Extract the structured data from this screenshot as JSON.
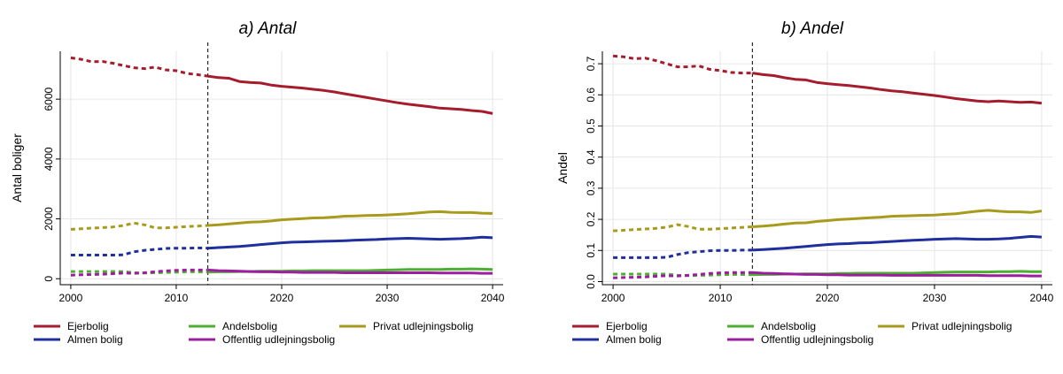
{
  "chart_data": [
    {
      "type": "line",
      "title": "a) Antal",
      "xlabel": "",
      "ylabel": "Antal boliger",
      "xlim": [
        1999,
        2041
      ],
      "ylim": [
        -200,
        7600
      ],
      "xticks": [
        2000,
        2010,
        2020,
        2030,
        2040
      ],
      "yticks": [
        0,
        2000,
        4000,
        6000
      ],
      "ytick_labels": [
        "0",
        "2000",
        "4000",
        "6000"
      ],
      "ytick_orientation": "vertical",
      "grid": true,
      "split_year": 2013,
      "legend": "bottom",
      "series": [
        {
          "name": "Ejerbolig",
          "color": "#a51c2d",
          "x": [
            2000,
            2001,
            2002,
            2003,
            2004,
            2005,
            2006,
            2007,
            2008,
            2009,
            2010,
            2011,
            2012,
            2013,
            2014,
            2015,
            2016,
            2017,
            2018,
            2019,
            2020,
            2021,
            2022,
            2023,
            2024,
            2025,
            2026,
            2027,
            2028,
            2029,
            2030,
            2031,
            2032,
            2033,
            2034,
            2035,
            2036,
            2037,
            2038,
            2039,
            2040
          ],
          "y": [
            7380,
            7330,
            7250,
            7260,
            7200,
            7120,
            7050,
            7020,
            7070,
            6980,
            6950,
            6860,
            6820,
            6770,
            6720,
            6700,
            6590,
            6560,
            6540,
            6470,
            6430,
            6400,
            6370,
            6330,
            6290,
            6240,
            6180,
            6120,
            6060,
            6000,
            5940,
            5880,
            5830,
            5790,
            5750,
            5700,
            5680,
            5660,
            5620,
            5590,
            5520
          ]
        },
        {
          "name": "Almen bolig",
          "color": "#1f2f9e",
          "x": [
            2000,
            2001,
            2002,
            2003,
            2004,
            2005,
            2006,
            2007,
            2008,
            2009,
            2010,
            2011,
            2012,
            2013,
            2014,
            2015,
            2016,
            2017,
            2018,
            2019,
            2020,
            2021,
            2022,
            2023,
            2024,
            2025,
            2026,
            2027,
            2028,
            2029,
            2030,
            2031,
            2032,
            2033,
            2034,
            2035,
            2036,
            2037,
            2038,
            2039,
            2040
          ],
          "y": [
            790,
            790,
            790,
            790,
            790,
            800,
            900,
            950,
            980,
            1010,
            1020,
            1020,
            1030,
            1020,
            1040,
            1060,
            1080,
            1110,
            1140,
            1170,
            1200,
            1220,
            1230,
            1240,
            1250,
            1260,
            1270,
            1290,
            1300,
            1310,
            1330,
            1340,
            1350,
            1340,
            1330,
            1320,
            1330,
            1340,
            1360,
            1390,
            1370
          ]
        },
        {
          "name": "Andelsbolig",
          "color": "#4caf32",
          "x": [
            2000,
            2001,
            2002,
            2003,
            2004,
            2005,
            2006,
            2007,
            2008,
            2009,
            2010,
            2011,
            2012,
            2013,
            2014,
            2015,
            2016,
            2017,
            2018,
            2019,
            2020,
            2021,
            2022,
            2023,
            2024,
            2025,
            2026,
            2027,
            2028,
            2029,
            2030,
            2031,
            2032,
            2033,
            2034,
            2035,
            2036,
            2037,
            2038,
            2039,
            2040
          ],
          "y": [
            240,
            240,
            240,
            240,
            240,
            240,
            200,
            190,
            200,
            210,
            220,
            230,
            230,
            220,
            230,
            230,
            240,
            240,
            250,
            250,
            250,
            260,
            260,
            270,
            270,
            270,
            270,
            270,
            270,
            280,
            290,
            300,
            310,
            310,
            310,
            310,
            320,
            320,
            330,
            320,
            310
          ]
        },
        {
          "name": "Offentlig udlejningsbolig",
          "color": "#9c1e9e",
          "x": [
            2000,
            2001,
            2002,
            2003,
            2004,
            2005,
            2006,
            2007,
            2008,
            2009,
            2010,
            2011,
            2012,
            2013,
            2014,
            2015,
            2016,
            2017,
            2018,
            2019,
            2020,
            2021,
            2022,
            2023,
            2024,
            2025,
            2026,
            2027,
            2028,
            2029,
            2030,
            2031,
            2032,
            2033,
            2034,
            2035,
            2036,
            2037,
            2038,
            2039,
            2040
          ],
          "y": [
            120,
            130,
            140,
            150,
            170,
            190,
            180,
            200,
            230,
            260,
            280,
            290,
            290,
            290,
            270,
            260,
            250,
            240,
            230,
            230,
            220,
            220,
            210,
            210,
            210,
            210,
            200,
            200,
            200,
            200,
            200,
            200,
            200,
            200,
            200,
            190,
            190,
            190,
            190,
            180,
            180
          ]
        },
        {
          "name": "Privat udlejningsbolig",
          "color": "#a89a1c",
          "x": [
            2000,
            2001,
            2002,
            2003,
            2004,
            2005,
            2006,
            2007,
            2008,
            2009,
            2010,
            2011,
            2012,
            2013,
            2014,
            2015,
            2016,
            2017,
            2018,
            2019,
            2020,
            2021,
            2022,
            2023,
            2024,
            2025,
            2026,
            2027,
            2028,
            2029,
            2030,
            2031,
            2032,
            2033,
            2034,
            2035,
            2036,
            2037,
            2038,
            2039,
            2040
          ],
          "y": [
            1650,
            1670,
            1690,
            1710,
            1730,
            1780,
            1860,
            1800,
            1700,
            1700,
            1720,
            1740,
            1760,
            1780,
            1800,
            1830,
            1860,
            1890,
            1900,
            1930,
            1970,
            1990,
            2010,
            2030,
            2040,
            2060,
            2090,
            2100,
            2110,
            2120,
            2130,
            2150,
            2170,
            2200,
            2230,
            2240,
            2220,
            2210,
            2210,
            2190,
            2180
          ]
        }
      ]
    },
    {
      "type": "line",
      "title": "b) Andel",
      "xlabel": "",
      "ylabel": "Andel",
      "xlim": [
        1999,
        2041
      ],
      "ylim": [
        -0.01,
        0.74
      ],
      "xticks": [
        2000,
        2010,
        2020,
        2030,
        2040
      ],
      "yticks": [
        0,
        0.1,
        0.2,
        0.3,
        0.4,
        0.5,
        0.6,
        0.7
      ],
      "ytick_labels": [
        "0.0",
        "0.1",
        "0.2",
        "0.3",
        "0.4",
        "0.5",
        "0.6",
        "0.7"
      ],
      "ytick_orientation": "vertical",
      "grid": true,
      "split_year": 2013,
      "legend": "bottom",
      "series": [
        {
          "name": "Ejerbolig",
          "color": "#a51c2d",
          "x": [
            2000,
            2001,
            2002,
            2003,
            2004,
            2005,
            2006,
            2007,
            2008,
            2009,
            2010,
            2011,
            2012,
            2013,
            2014,
            2015,
            2016,
            2017,
            2018,
            2019,
            2020,
            2021,
            2022,
            2023,
            2024,
            2025,
            2026,
            2027,
            2028,
            2029,
            2030,
            2031,
            2032,
            2033,
            2034,
            2035,
            2036,
            2037,
            2038,
            2039,
            2040
          ],
          "y": [
            0.725,
            0.722,
            0.716,
            0.718,
            0.71,
            0.7,
            0.69,
            0.69,
            0.693,
            0.682,
            0.678,
            0.672,
            0.67,
            0.67,
            0.665,
            0.662,
            0.655,
            0.65,
            0.648,
            0.64,
            0.636,
            0.633,
            0.63,
            0.626,
            0.622,
            0.617,
            0.613,
            0.61,
            0.606,
            0.602,
            0.598,
            0.593,
            0.588,
            0.584,
            0.58,
            0.578,
            0.58,
            0.578,
            0.576,
            0.577,
            0.573
          ]
        },
        {
          "name": "Almen bolig",
          "color": "#1f2f9e",
          "x": [
            2000,
            2001,
            2002,
            2003,
            2004,
            2005,
            2006,
            2007,
            2008,
            2009,
            2010,
            2011,
            2012,
            2013,
            2014,
            2015,
            2016,
            2017,
            2018,
            2019,
            2020,
            2021,
            2022,
            2023,
            2024,
            2025,
            2026,
            2027,
            2028,
            2029,
            2030,
            2031,
            2032,
            2033,
            2034,
            2035,
            2036,
            2037,
            2038,
            2039,
            2040
          ],
          "y": [
            0.077,
            0.077,
            0.077,
            0.077,
            0.077,
            0.078,
            0.087,
            0.093,
            0.096,
            0.099,
            0.1,
            0.1,
            0.101,
            0.101,
            0.103,
            0.105,
            0.107,
            0.11,
            0.113,
            0.116,
            0.119,
            0.121,
            0.122,
            0.124,
            0.125,
            0.127,
            0.129,
            0.131,
            0.133,
            0.134,
            0.136,
            0.137,
            0.138,
            0.137,
            0.136,
            0.136,
            0.137,
            0.139,
            0.142,
            0.145,
            0.143
          ]
        },
        {
          "name": "Andelsbolig",
          "color": "#4caf32",
          "x": [
            2000,
            2001,
            2002,
            2003,
            2004,
            2005,
            2006,
            2007,
            2008,
            2009,
            2010,
            2011,
            2012,
            2013,
            2014,
            2015,
            2016,
            2017,
            2018,
            2019,
            2020,
            2021,
            2022,
            2023,
            2024,
            2025,
            2026,
            2027,
            2028,
            2029,
            2030,
            2031,
            2032,
            2033,
            2034,
            2035,
            2036,
            2037,
            2038,
            2039,
            2040
          ],
          "y": [
            0.024,
            0.024,
            0.024,
            0.024,
            0.024,
            0.024,
            0.02,
            0.019,
            0.02,
            0.021,
            0.022,
            0.023,
            0.023,
            0.022,
            0.023,
            0.023,
            0.024,
            0.024,
            0.025,
            0.025,
            0.025,
            0.026,
            0.026,
            0.027,
            0.027,
            0.027,
            0.027,
            0.027,
            0.027,
            0.028,
            0.029,
            0.03,
            0.031,
            0.031,
            0.031,
            0.031,
            0.032,
            0.032,
            0.033,
            0.032,
            0.032
          ]
        },
        {
          "name": "Offentlig udlejningsbolig",
          "color": "#9c1e9e",
          "x": [
            2000,
            2001,
            2002,
            2003,
            2004,
            2005,
            2006,
            2007,
            2008,
            2009,
            2010,
            2011,
            2012,
            2013,
            2014,
            2015,
            2016,
            2017,
            2018,
            2019,
            2020,
            2021,
            2022,
            2023,
            2024,
            2025,
            2026,
            2027,
            2028,
            2029,
            2030,
            2031,
            2032,
            2033,
            2034,
            2035,
            2036,
            2037,
            2038,
            2039,
            2040
          ],
          "y": [
            0.012,
            0.013,
            0.014,
            0.015,
            0.017,
            0.019,
            0.018,
            0.02,
            0.023,
            0.026,
            0.028,
            0.029,
            0.029,
            0.029,
            0.027,
            0.026,
            0.025,
            0.024,
            0.023,
            0.023,
            0.022,
            0.022,
            0.021,
            0.021,
            0.021,
            0.021,
            0.02,
            0.02,
            0.02,
            0.02,
            0.02,
            0.02,
            0.02,
            0.02,
            0.02,
            0.019,
            0.019,
            0.019,
            0.019,
            0.018,
            0.018
          ]
        },
        {
          "name": "Privat udlejningsbolig",
          "color": "#a89a1c",
          "x": [
            2000,
            2001,
            2002,
            2003,
            2004,
            2005,
            2006,
            2007,
            2008,
            2009,
            2010,
            2011,
            2012,
            2013,
            2014,
            2015,
            2016,
            2017,
            2018,
            2019,
            2020,
            2021,
            2022,
            2023,
            2024,
            2025,
            2026,
            2027,
            2028,
            2029,
            2030,
            2031,
            2032,
            2033,
            2034,
            2035,
            2036,
            2037,
            2038,
            2039,
            2040
          ],
          "y": [
            0.163,
            0.165,
            0.167,
            0.169,
            0.171,
            0.175,
            0.183,
            0.177,
            0.168,
            0.168,
            0.17,
            0.172,
            0.174,
            0.176,
            0.178,
            0.181,
            0.185,
            0.188,
            0.189,
            0.193,
            0.196,
            0.199,
            0.201,
            0.203,
            0.205,
            0.207,
            0.21,
            0.211,
            0.212,
            0.213,
            0.214,
            0.216,
            0.218,
            0.222,
            0.226,
            0.229,
            0.226,
            0.224,
            0.224,
            0.222,
            0.227
          ]
        }
      ]
    }
  ]
}
